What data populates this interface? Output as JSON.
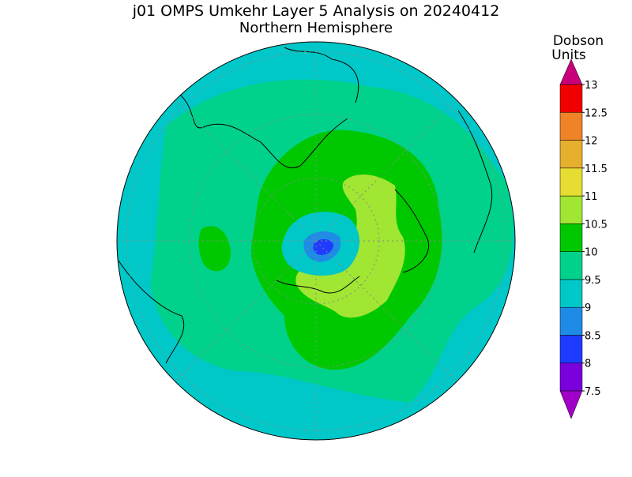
{
  "title": "j01 OMPS Umkehr Layer 5 Analysis on 20240412",
  "subtitle": "Northern Hemisphere",
  "colorbar": {
    "unit_label": [
      "Dobson",
      "Units"
    ],
    "levels": [
      7.5,
      8,
      8.5,
      9,
      9.5,
      10,
      10.5,
      11,
      11.5,
      12,
      12.5,
      13
    ],
    "under_color": "#a000c8",
    "colors": [
      "#7a00dc",
      "#1e3cff",
      "#1e8ce6",
      "#00c8c8",
      "#00d28c",
      "#00c800",
      "#a0e632",
      "#e6dc32",
      "#e6af2d",
      "#f08228",
      "#f00000"
    ],
    "over_color": "#c8007a"
  }
}
